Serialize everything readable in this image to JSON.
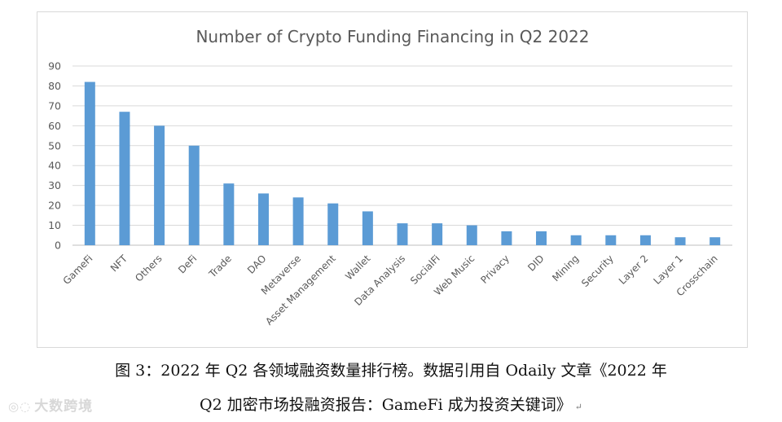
{
  "chart_data": {
    "type": "bar",
    "title": "Number of Crypto Funding Financing in Q2 2022",
    "categories": [
      "GameFi",
      "NFT",
      "Others",
      "DeFi",
      "Trade",
      "DAO",
      "Metaverse",
      "Asset Management",
      "Wallet",
      "Data Analysis",
      "SocialFi",
      "Web Music",
      "Privacy",
      "DID",
      "Mining",
      "Security",
      "Layer 2",
      "Layer 1",
      "Crosschain"
    ],
    "values": [
      82,
      67,
      60,
      50,
      31,
      26,
      24,
      21,
      17,
      11,
      11,
      10,
      7,
      7,
      5,
      5,
      5,
      4,
      4
    ],
    "ylim": [
      0,
      90
    ],
    "yticks": [
      0,
      10,
      20,
      30,
      40,
      50,
      60,
      70,
      80,
      90
    ],
    "grid": true,
    "bar_color": "#5b9bd5",
    "grid_color": "#d9d9d9"
  },
  "caption": {
    "line1": "图 3：2022 年 Q2 各领域融资数量排行榜。数据引用自 Odaily 文章《2022 年",
    "line2": "Q2 加密市场投融资报告：GameFi 成为投资关键词》",
    "return_mark": "↵"
  },
  "watermark": {
    "text": "大数跨境"
  }
}
